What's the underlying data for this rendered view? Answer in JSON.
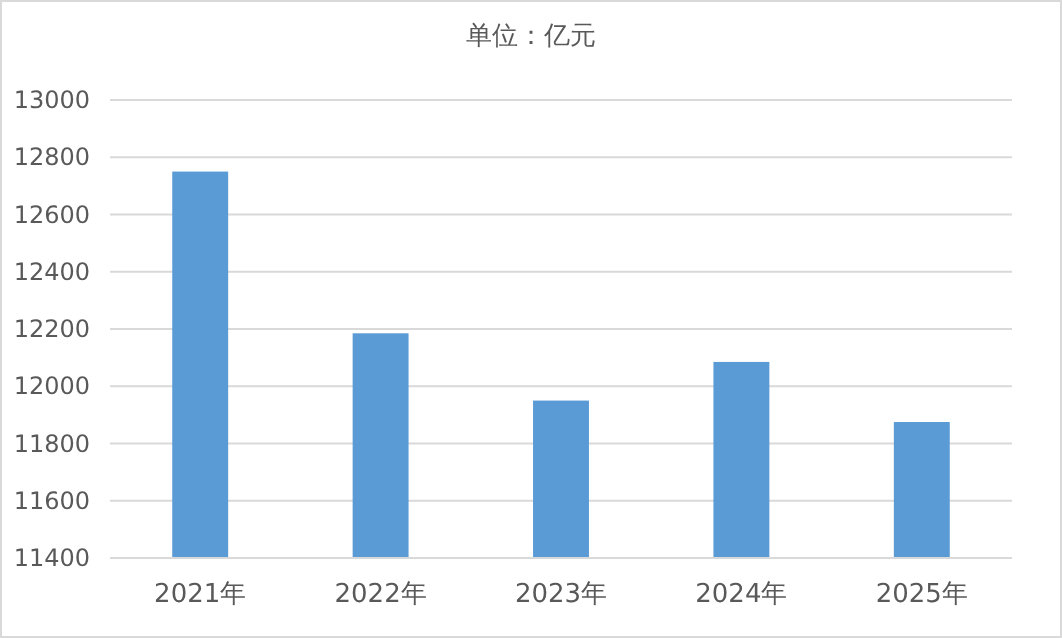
{
  "chart_data": {
    "type": "bar",
    "title": "单位：亿元",
    "categories": [
      "2021年",
      "2022年",
      "2023年",
      "2024年",
      "2025年"
    ],
    "values": [
      12750,
      12185,
      11950,
      12085,
      11875
    ],
    "color": "#5b9bd5",
    "ylim": [
      11400,
      13000
    ],
    "yticks": [
      11400,
      11600,
      11800,
      12000,
      12200,
      12400,
      12600,
      12800,
      13000
    ],
    "grid": "y"
  }
}
